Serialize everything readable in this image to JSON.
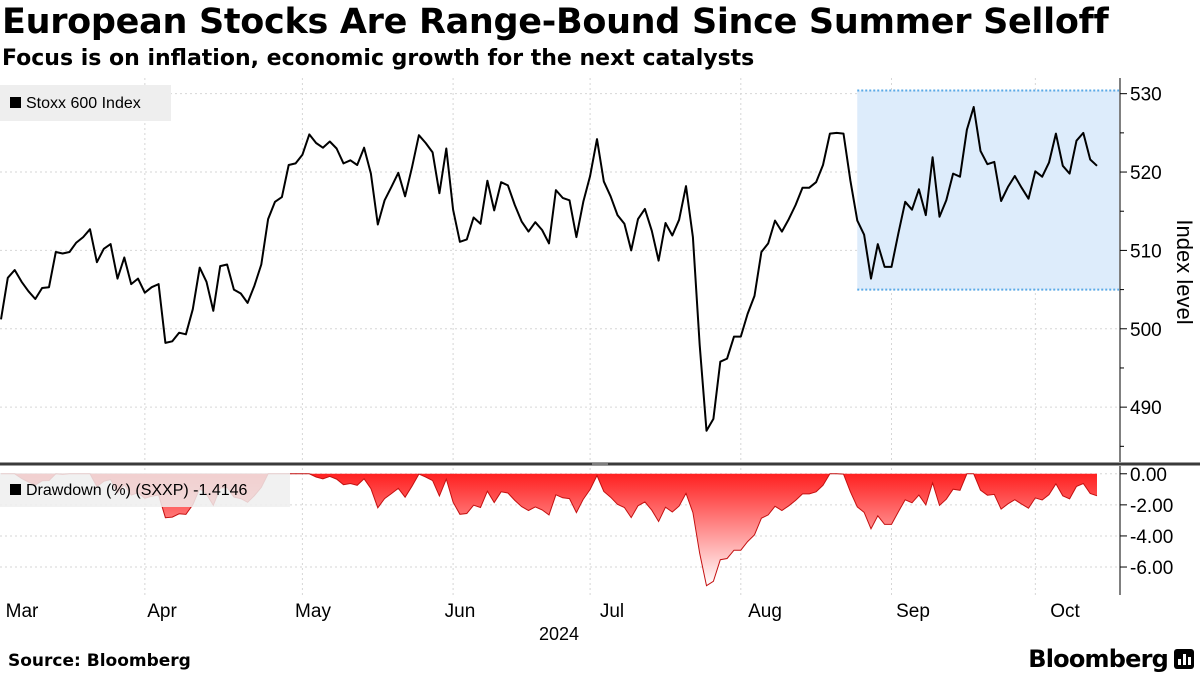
{
  "header": {
    "title": "European Stocks Are Range-Bound Since Summer Selloff",
    "subtitle": "Focus is on inflation, economic growth for the next catalysts"
  },
  "footer": {
    "source": "Source: Bloomberg",
    "brand": "Bloomberg"
  },
  "chart_data": [
    {
      "type": "line",
      "legend": "Stoxx 600 Index",
      "legend_position": "top-left",
      "ylabel": "Index level",
      "ylim": [
        483,
        532
      ],
      "yticks": [
        490,
        500,
        510,
        520,
        530
      ],
      "color": "#000000",
      "highlight_region": {
        "start": 125,
        "end": 167,
        "ymin": 505,
        "ymax": 530.4,
        "color": "#ddecfb"
      },
      "values": [
        501.2,
        506.5,
        507.5,
        506,
        504.8,
        503.8,
        505.2,
        505.3,
        509.8,
        509.6,
        509.8,
        511,
        511.7,
        512.7,
        508.5,
        510.2,
        510.8,
        506.4,
        509.1,
        505.7,
        506.4,
        504.6,
        505.3,
        505.7,
        498.2,
        498.4,
        499.5,
        499.3,
        502.5,
        507.8,
        506,
        502.3,
        508,
        508.2,
        505,
        504.5,
        503.3,
        505.5,
        508.2,
        514,
        516.2,
        516.8,
        520.9,
        521.1,
        522.2,
        524.8,
        523.7,
        523.1,
        523.9,
        523,
        521.1,
        521.5,
        520.9,
        523.1,
        519.8,
        513.3,
        516.4,
        518.1,
        519.9,
        516.9,
        520.6,
        524.7,
        523.7,
        522.5,
        517.3,
        523,
        515.2,
        511.1,
        511.4,
        514.2,
        513.4,
        518.9,
        515.1,
        518.7,
        518.3,
        515.8,
        513.7,
        512.4,
        513.6,
        512.6,
        510.9,
        517.7,
        516.7,
        516.4,
        511.7,
        516.2,
        519.5,
        524.2,
        518.8,
        516.9,
        514.5,
        513.4,
        510,
        514,
        515.3,
        512.5,
        508.7,
        513.5,
        511.9,
        513.9,
        518.2,
        511.7,
        497.9,
        487,
        488.5,
        495.8,
        496.2,
        499,
        499,
        501.9,
        504.2,
        509.8,
        510.9,
        513.8,
        512.4,
        514,
        515.8,
        518,
        518,
        518.7,
        520.9,
        524.9,
        525,
        524.9,
        518.9,
        513.8,
        512,
        506.4,
        510.8,
        507.9,
        507.9,
        512.2,
        516.2,
        515.2,
        517.8,
        514.5,
        521.9,
        514.3,
        516.4,
        519.8,
        519.4,
        525.4,
        528.3,
        522.7,
        521,
        521.3,
        516.3,
        518.1,
        519.5,
        518,
        516.6,
        520.1,
        519.4,
        521.2,
        524.9,
        520.8,
        519.8,
        524,
        525,
        521.6,
        520.8
      ]
    },
    {
      "type": "area",
      "legend": "Drawdown (%) (SXXP) -1.4146",
      "legend_position": "top-left",
      "ylim": [
        -7.8,
        0.5
      ],
      "yticks": [
        "0.00",
        "-2.00",
        "-4.00",
        "-6.00"
      ],
      "ytick_values": [
        0,
        -2,
        -4,
        -6
      ],
      "colors": {
        "top": "#ff2020",
        "bottom": "#ffffff",
        "stroke": "#c41010"
      },
      "categories": [
        "Mar",
        "Apr",
        "May",
        "Jun",
        "Jul",
        "Aug",
        "Sep",
        "Oct"
      ],
      "x_year": "2024"
    }
  ]
}
